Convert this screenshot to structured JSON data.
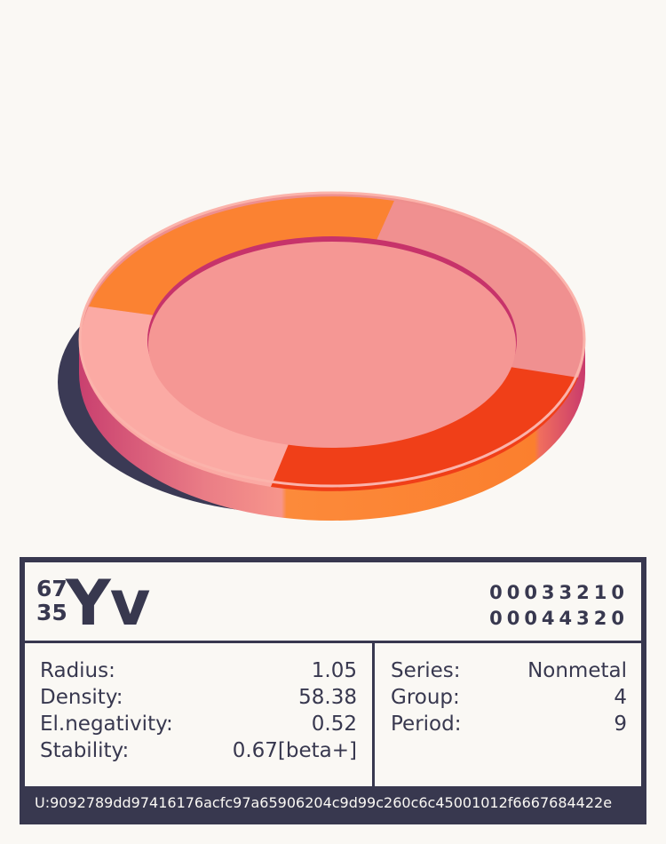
{
  "element": {
    "mass_number": "67",
    "atomic_number": "35",
    "symbol": "Yv",
    "codes": [
      "00033210",
      "00044320"
    ]
  },
  "properties": [
    {
      "label": "Radius:",
      "value": "1.05"
    },
    {
      "label": "Density:",
      "value": "58.38"
    },
    {
      "label": "El.negativity:",
      "value": "0.52"
    },
    {
      "label": "Stability:",
      "value": "0.67[beta+]"
    }
  ],
  "classification": [
    {
      "label": "Series:",
      "value": "Nonmetal"
    },
    {
      "label": "Group:",
      "value": "4"
    },
    {
      "label": "Period:",
      "value": "9"
    }
  ],
  "footer": {
    "uid": "U:9092789dd97416176acfc97a65906204c9d99c260c6c45001012f6667684422e"
  },
  "colors": {
    "ink": "#38384f",
    "paper": "#faf8f4",
    "shadow": "#3b3a55",
    "disc_face": "#f59794",
    "disc_edge": "#c7336a",
    "ring_orange": "#fb8232",
    "ring_red_orange": "#f03f18",
    "ring_pink": "#ee8f8e",
    "ring_light": "#fbaaa4"
  }
}
